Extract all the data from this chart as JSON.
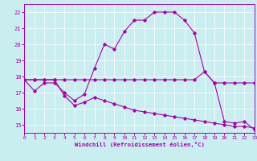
{
  "bg_color": "#c8eef0",
  "line_color": "#aa00aa",
  "grid_color": "#ffffff",
  "xlim": [
    0,
    23
  ],
  "ylim": [
    14.5,
    22.5
  ],
  "yticks": [
    15,
    16,
    17,
    18,
    19,
    20,
    21,
    22
  ],
  "xticks": [
    0,
    1,
    2,
    3,
    4,
    5,
    6,
    7,
    8,
    9,
    10,
    11,
    12,
    13,
    14,
    15,
    16,
    17,
    18,
    19,
    20,
    21,
    22,
    23
  ],
  "xlabel": "Windchill (Refroidissement éolien,°C)",
  "line1_x": [
    0,
    1,
    2,
    3,
    4,
    5,
    6,
    7,
    8,
    9,
    10,
    11,
    12,
    13,
    14,
    15,
    16,
    17,
    18,
    19,
    20,
    21,
    22,
    23
  ],
  "line1_y": [
    17.8,
    17.1,
    17.6,
    17.6,
    17.0,
    16.5,
    16.9,
    18.5,
    20.0,
    19.7,
    20.8,
    21.5,
    21.5,
    22.0,
    22.0,
    22.0,
    21.5,
    20.7,
    18.3,
    17.6,
    15.2,
    15.1,
    15.2,
    14.7
  ],
  "line2_x": [
    0,
    1,
    2,
    3,
    4,
    5,
    6,
    7,
    8,
    9,
    10,
    11,
    12,
    13,
    14,
    15,
    16,
    17,
    18,
    19,
    20,
    21,
    22,
    23
  ],
  "line2_y": [
    17.8,
    17.8,
    17.8,
    17.8,
    17.8,
    17.8,
    17.8,
    17.8,
    17.8,
    17.8,
    17.8,
    17.8,
    17.8,
    17.8,
    17.8,
    17.8,
    17.8,
    17.8,
    18.3,
    17.6,
    17.6,
    17.6,
    17.6,
    17.6
  ],
  "line3_x": [
    0,
    1,
    2,
    3,
    4,
    5,
    6,
    7,
    8,
    9,
    10,
    11,
    12,
    13,
    14,
    15,
    16,
    17,
    18,
    19,
    20,
    21,
    22,
    23
  ],
  "line3_y": [
    17.8,
    17.8,
    17.8,
    17.8,
    16.8,
    16.2,
    16.4,
    16.7,
    16.5,
    16.3,
    16.1,
    15.9,
    15.8,
    15.7,
    15.6,
    15.5,
    15.4,
    15.3,
    15.2,
    15.1,
    15.0,
    14.9,
    14.9,
    14.8
  ]
}
